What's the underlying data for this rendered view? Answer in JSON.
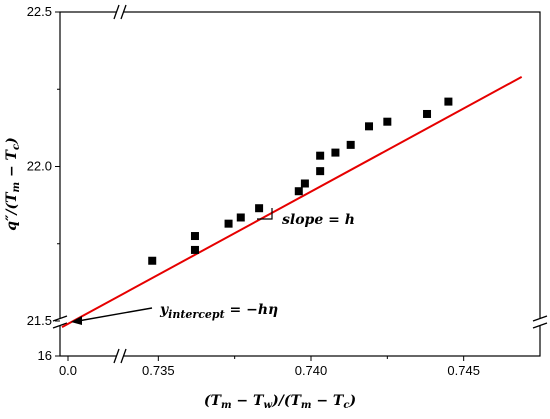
{
  "chart_data": {
    "type": "scatter",
    "title": "",
    "xlabel": "(T_m − T_w)/(T_m − T_c)",
    "ylabel": "q''/(T_m − T_c)",
    "x_tick_labels": [
      "0.0",
      "0.735",
      "0.740",
      "0.745"
    ],
    "y_tick_labels": [
      "16",
      "21.5",
      "22.0",
      "22.5"
    ],
    "x_main_range": [
      0.7325,
      0.7475
    ],
    "y_main_range": [
      21.5,
      22.5
    ],
    "x_main_ticks": [
      0.735,
      0.74,
      0.745
    ],
    "y_main_ticks": [
      21.5,
      22.0,
      22.5
    ],
    "x_break_tick": 0.0,
    "y_break_tick": 16,
    "axis_breaks": "x between 0.0 and 0.7325; y between 16 and 21.5",
    "grid": false,
    "legend": "none",
    "series": [
      {
        "marker": "square",
        "color": "#000000",
        "points": [
          [
            0.7348,
            21.695
          ],
          [
            0.7362,
            21.73
          ],
          [
            0.7362,
            21.775
          ],
          [
            0.7373,
            21.815
          ],
          [
            0.7377,
            21.835
          ],
          [
            0.7383,
            21.865
          ],
          [
            0.7396,
            21.92
          ],
          [
            0.7398,
            21.945
          ],
          [
            0.7403,
            21.985
          ],
          [
            0.7403,
            22.035
          ],
          [
            0.7408,
            22.045
          ],
          [
            0.7413,
            22.07
          ],
          [
            0.7419,
            22.13
          ],
          [
            0.7425,
            22.145
          ],
          [
            0.7438,
            22.17
          ],
          [
            0.7445,
            22.21
          ]
        ]
      },
      {
        "type": "line",
        "color": "#e60000",
        "fit": "linear",
        "endpoints": [
          [
            0.0,
            21.48
          ],
          [
            0.7469,
            22.29
          ]
        ]
      }
    ],
    "annotations": {
      "slope": "slope = h",
      "intercept": "y_intercept = −hη"
    }
  }
}
